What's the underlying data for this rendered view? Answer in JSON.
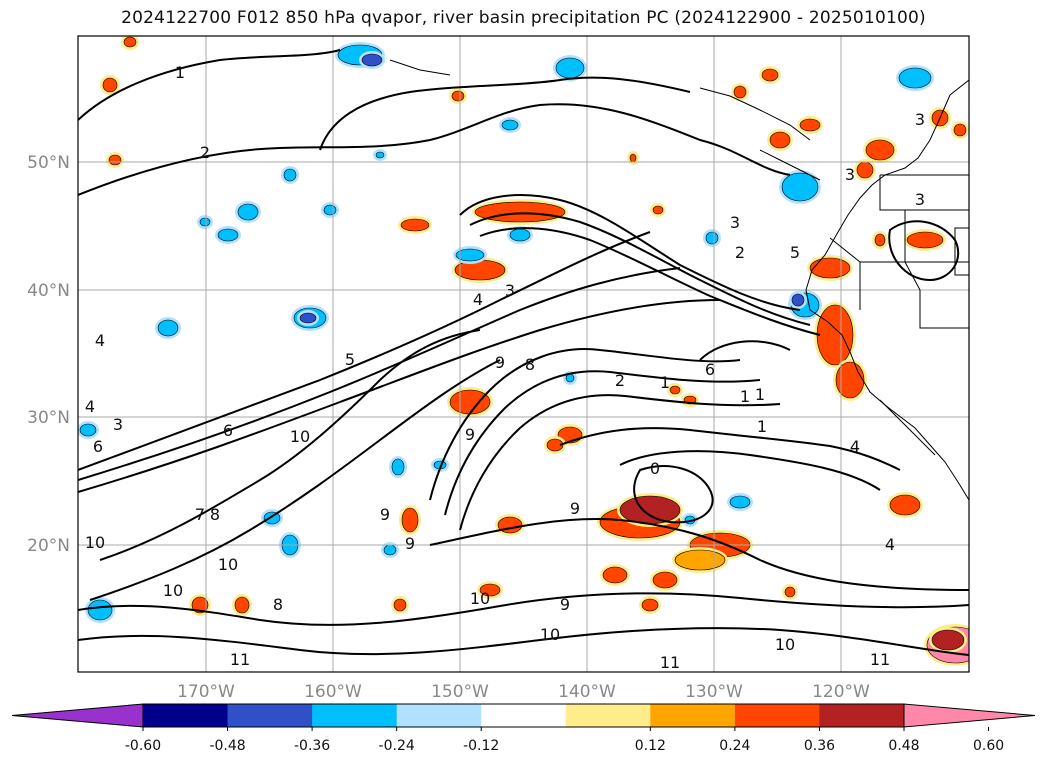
{
  "title": "2024122700 F012 850 hPa qvapor, river basin precipitation PC (2024122900 - 2025010100)",
  "map": {
    "lat_labels": [
      "50°N",
      "40°N",
      "30°N",
      "20°N"
    ],
    "lon_labels": [
      "170°W",
      "160°W",
      "150°W",
      "140°W",
      "130°W",
      "120°W"
    ]
  },
  "contour_labels": [
    "1",
    "2",
    "3",
    "2",
    "3",
    "4",
    "5",
    "6",
    "4",
    "3",
    "4",
    "6",
    "10",
    "9",
    "8",
    "9",
    "2",
    "1",
    "6",
    "1",
    "0",
    "1",
    "4",
    "5",
    "9",
    "9",
    "7",
    "8",
    "10",
    "10",
    "10",
    "9",
    "10",
    "8",
    "10",
    "11",
    "10",
    "11",
    "11",
    "9",
    "4",
    "1",
    "3",
    "3",
    "3"
  ],
  "colorbar": {
    "colors": [
      "#9932cc",
      "#00008b",
      "#3050c8",
      "#00bfff",
      "#b0e2ff",
      "#ffffff",
      "#ffec8b",
      "#ffa500",
      "#ff4500",
      "#b22222",
      "#ff88aa"
    ],
    "tick_labels": [
      "-0.60",
      "-0.48",
      "-0.36",
      "-0.24",
      "-0.12",
      "0.12",
      "0.24",
      "0.36",
      "0.48",
      "0.60"
    ]
  }
}
